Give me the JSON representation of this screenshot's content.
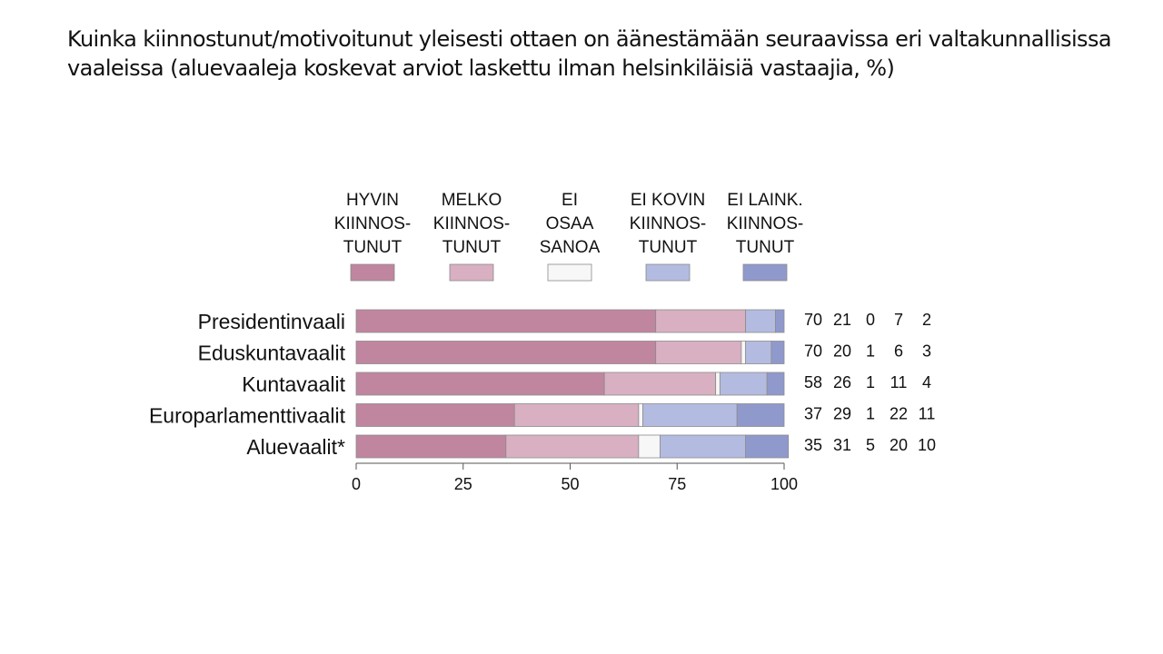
{
  "slide": {
    "title": "Kuinka kiinnostunut/motivoitunut yleisesti ottaen on äänestämään seuraavissa eri valtakunnallisissa vaaleissa (aluevaaleja koskevat arviot laskettu ilman helsinkiläisiä vastaajia, %)"
  },
  "chart_data": {
    "type": "bar",
    "orientation": "horizontal",
    "stacked": true,
    "categories": [
      "Presidentinvaali",
      "Eduskuntavaalit",
      "Kuntavaalit",
      "Europarlamenttivaalit",
      "Aluevaalit*"
    ],
    "series": [
      {
        "name": "HYVIN KIINNOS-TUNUT",
        "lines": [
          "HYVIN",
          "KIINNOS-",
          "TUNUT"
        ],
        "color": "#c0859f",
        "values": [
          70,
          70,
          58,
          37,
          35
        ]
      },
      {
        "name": "MELKO KIINNOS-TUNUT",
        "lines": [
          "MELKO",
          "KIINNOS-",
          "TUNUT"
        ],
        "color": "#d8b0c2",
        "values": [
          21,
          20,
          26,
          29,
          31
        ]
      },
      {
        "name": "EI OSAA SANOA",
        "lines": [
          "EI",
          "OSAA",
          "SANOA"
        ],
        "color": "#f6f7f6",
        "values": [
          0,
          1,
          1,
          1,
          5
        ]
      },
      {
        "name": "EI KOVIN KIINNOS-TUNUT",
        "lines": [
          "EI KOVIN",
          "KIINNOS-",
          "TUNUT"
        ],
        "color": "#b4bbe0",
        "values": [
          7,
          6,
          11,
          22,
          20
        ]
      },
      {
        "name": "EI LAINK. KIINNOS-TUNUT",
        "lines": [
          "EI LAINK.",
          "KIINNOS-",
          "TUNUT"
        ],
        "color": "#9099cc",
        "values": [
          2,
          3,
          4,
          11,
          10
        ]
      }
    ],
    "xlim": [
      0,
      100
    ],
    "xticks": [
      0,
      25,
      50,
      75,
      100
    ],
    "xlabel": "",
    "ylabel": "",
    "grid": false,
    "legend_position": "top",
    "value_labels": "right"
  }
}
